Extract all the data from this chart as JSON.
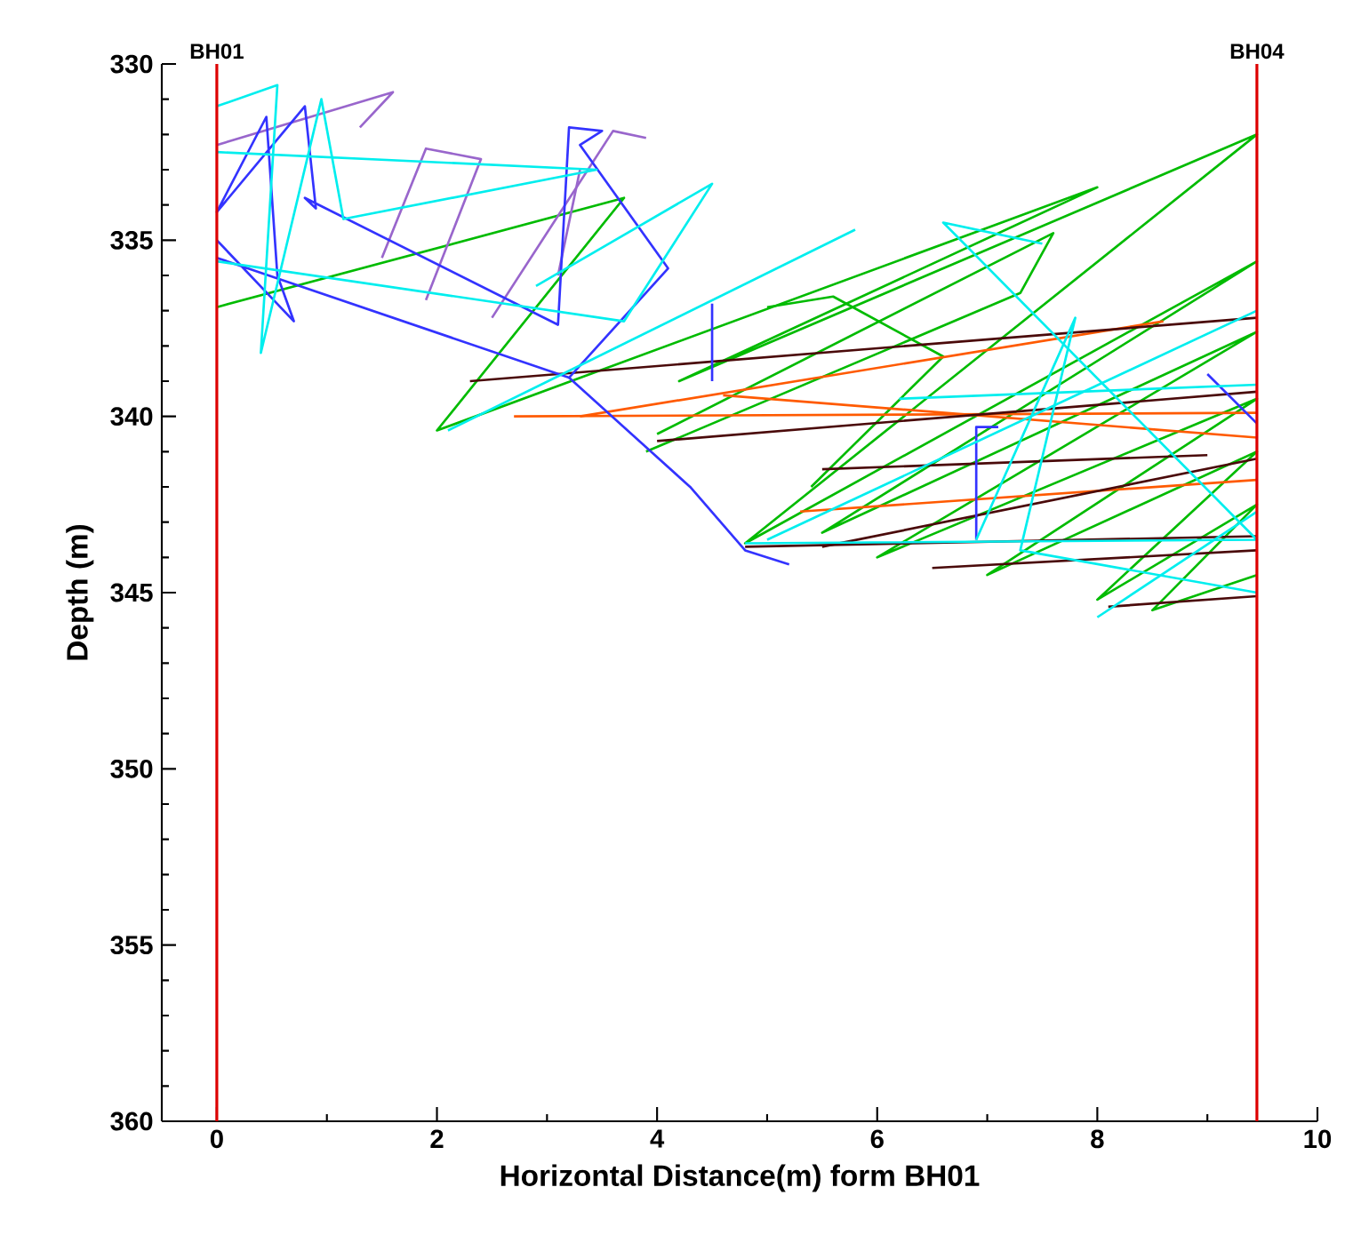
{
  "chart_data": {
    "type": "line",
    "xlabel": "Horizontal Distance(m) form BH01",
    "ylabel": "Depth (m)",
    "xlim": [
      -0.5,
      10
    ],
    "xticks": [
      0,
      2,
      4,
      6,
      8,
      10
    ],
    "ylim": [
      360,
      330
    ],
    "yticks": [
      330,
      335,
      340,
      345,
      350,
      355,
      360
    ],
    "grid": false,
    "marker": "none",
    "line_style": "solid",
    "ref_lines": [
      {
        "axis": "x",
        "value": 0,
        "label": "BH01",
        "color": "#dd0000"
      },
      {
        "axis": "x",
        "value": 9.45,
        "label": "BH04",
        "color": "#dd0000"
      }
    ],
    "series": [
      {
        "color": "#00bb00",
        "x": [
          0,
          3.7,
          2.0,
          8.0,
          4.2,
          9.45,
          4.8,
          9.45,
          5.5,
          9.45,
          6.0,
          9.45,
          7.0,
          9.45,
          8.0,
          9.45,
          8.5,
          9.45,
          null,
          4.0,
          7.6,
          7.3,
          3.9,
          null,
          5.0,
          5.6,
          6.6,
          5.4
        ],
        "values": [
          336.9,
          333.8,
          340.4,
          333.5,
          339.0,
          332.0,
          343.6,
          335.6,
          343.3,
          337.6,
          344.0,
          339.5,
          344.5,
          341.0,
          345.2,
          342.5,
          345.5,
          344.5,
          null,
          340.5,
          334.8,
          336.5,
          341.0,
          null,
          336.9,
          336.6,
          338.3,
          342.0
        ]
      },
      {
        "color": "#ff5a00",
        "x": [
          3.3,
          8.6,
          null,
          2.7,
          9.45,
          null,
          4.6,
          9.45,
          null,
          5.3,
          9.45
        ],
        "values": [
          340.0,
          337.3,
          null,
          340.0,
          339.9,
          null,
          339.4,
          340.6,
          null,
          342.7,
          341.8
        ]
      },
      {
        "color": "#4a0a0a",
        "x": [
          2.3,
          9.45,
          null,
          4.0,
          9.45,
          null,
          5.5,
          9.0,
          null,
          5.5,
          9.45,
          null,
          4.8,
          9.45,
          null,
          6.5,
          9.45,
          null,
          8.1,
          9.45
        ],
        "values": [
          339.0,
          337.2,
          null,
          340.7,
          339.3,
          null,
          341.5,
          341.1,
          null,
          343.7,
          341.2,
          null,
          343.7,
          343.4,
          null,
          344.3,
          343.8,
          null,
          345.4,
          345.1
        ]
      },
      {
        "color": "#9966cc",
        "x": [
          0,
          1.6,
          1.3,
          null,
          1.5,
          1.9,
          2.4,
          1.9,
          null,
          2.5,
          3.6,
          3.9,
          null,
          3.1,
          3.3
        ],
        "values": [
          332.3,
          330.8,
          331.8,
          null,
          335.5,
          332.4,
          332.7,
          336.7,
          null,
          337.2,
          331.9,
          332.1,
          null,
          336.0,
          333.0
        ]
      },
      {
        "color": "#3333ff",
        "x": [
          0,
          0.7,
          0.55,
          0.45,
          0,
          0.8,
          0.9,
          0.8,
          3.1,
          3.2,
          3.5,
          3.3,
          4.1,
          3.2,
          0,
          null,
          3.2,
          4.3,
          4.8,
          5.2,
          null,
          4.5,
          4.5,
          null,
          6.9,
          6.9,
          7.1,
          null,
          9.0,
          9.45
        ],
        "values": [
          335.0,
          337.3,
          336.0,
          331.5,
          334.2,
          331.2,
          334.1,
          333.8,
          337.4,
          331.8,
          331.9,
          332.3,
          335.8,
          338.9,
          335.5,
          null,
          338.9,
          342.0,
          343.8,
          344.2,
          null,
          336.8,
          339.0,
          null,
          343.5,
          340.3,
          340.3,
          null,
          338.8,
          340.2
        ]
      },
      {
        "color": "#00eeee",
        "x": [
          0,
          0.55,
          0.4,
          0.95,
          1.15,
          3.45,
          0,
          null,
          0,
          3.7,
          4.5,
          2.9,
          null,
          2.1,
          5.8,
          null,
          4.8,
          9.45,
          6.6,
          7.5,
          null,
          5.0,
          9.45,
          null,
          8.0,
          9.45,
          null,
          6.2,
          9.45,
          null,
          6.9,
          7.8,
          7.3,
          9.45
        ],
        "values": [
          331.2,
          330.6,
          338.2,
          331.0,
          334.4,
          333.0,
          332.5,
          null,
          335.6,
          337.3,
          333.4,
          336.3,
          null,
          340.4,
          334.7,
          null,
          343.6,
          343.5,
          334.5,
          335.1,
          null,
          343.5,
          337.0,
          null,
          345.7,
          342.7,
          null,
          339.5,
          339.1,
          null,
          343.5,
          337.2,
          343.8,
          345.0
        ]
      }
    ]
  }
}
